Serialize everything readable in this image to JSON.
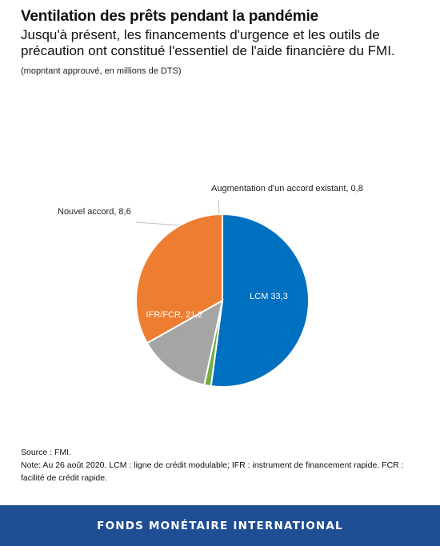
{
  "header": {
    "title": "Ventilation des prêts pendant la pandémie",
    "subtitle": "Jusqu'à présent, les financements d'urgence et les outils de précaution ont constitué l'essentiel de l'aide financière du FMI.",
    "unit": "(mopntant approuvé, en millions de DTS)"
  },
  "chart_data": {
    "type": "pie",
    "slices": [
      {
        "label": "LCM",
        "value_label": "33,3",
        "value": 33.3,
        "color": "#0070c0"
      },
      {
        "label": "IFR/FCR,",
        "value_label": "21,2",
        "value": 21.2,
        "color": "#ed7d31"
      },
      {
        "label": "Nouvel accord,",
        "value_label": "8,6",
        "value": 8.6,
        "color": "#a5a5a5"
      },
      {
        "label": "Augmentation  d'un accord existant,",
        "value_label": "0,8",
        "value": 0.8,
        "color": "#70ad47"
      }
    ]
  },
  "footer": {
    "source": "Source : FMI.",
    "note": "Note: Au 26 août 2020.  LCM : ligne de crédit modulable; IFR : instrument de financement rapide. FCR : facilité de crédit rapide.",
    "org": "FONDS MONÉTAIRE INTERNATIONAL"
  }
}
